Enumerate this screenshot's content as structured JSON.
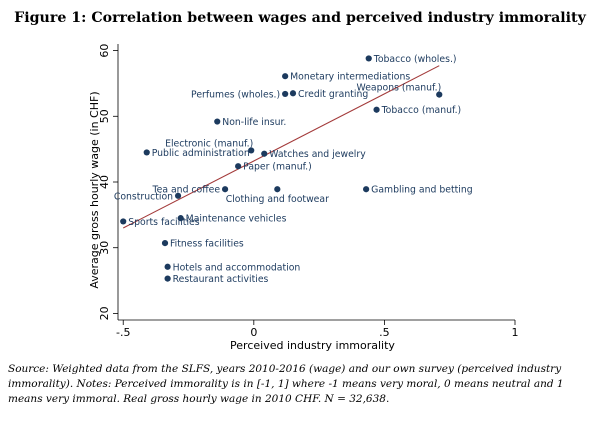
{
  "figure_title": "Figure 1: Correlation between wages and perceived industry immorality",
  "caption": "Source: Weighted data from the SLFS, years 2010-2016 (wage) and our own survey (perceived industry immorality). Notes: Perceived immorality is in [-1, 1] where -1 means very moral, 0 means neutral and 1 means very immoral. Real gross hourly wage in 2010 CHF. N = 32,638.",
  "colors": {
    "point": "#1c3a5e",
    "fit_line": "#a33a3a",
    "axis": "#000000",
    "text": "#000000"
  },
  "chart_data": {
    "type": "scatter",
    "title": "",
    "xlabel": "Perceived industry immorality",
    "ylabel": "Average gross hourly wage (in CHF)",
    "xlim": [
      -0.52,
      1.0
    ],
    "ylim": [
      19,
      61
    ],
    "xticks": [
      -0.5,
      0,
      0.5,
      1
    ],
    "xtick_labels": [
      "-.5",
      "0",
      ".5",
      "1"
    ],
    "yticks": [
      20,
      30,
      40,
      50,
      60
    ],
    "ytick_labels": [
      "20",
      "30",
      "40",
      "50",
      "60"
    ],
    "grid": false,
    "legend": "none",
    "points": [
      {
        "label": "Tobacco (wholes.)",
        "x": 0.44,
        "y": 58.8,
        "pos": "right"
      },
      {
        "label": "Monetary intermediations",
        "x": 0.12,
        "y": 56.1,
        "pos": "right"
      },
      {
        "label": "Weapons (manuf.)",
        "x": 0.71,
        "y": 53.3,
        "pos": "above-left"
      },
      {
        "label": "Perfumes (wholes.)",
        "x": 0.12,
        "y": 53.4,
        "pos": "left"
      },
      {
        "label": "Credit granting",
        "x": 0.15,
        "y": 53.5,
        "pos": "right"
      },
      {
        "label": "Tobacco (manuf.)",
        "x": 0.47,
        "y": 51.0,
        "pos": "right"
      },
      {
        "label": "Non-life insur.",
        "x": -0.14,
        "y": 49.2,
        "pos": "right"
      },
      {
        "label": "Electronic (manuf.)",
        "x": -0.01,
        "y": 44.8,
        "pos": "above-left"
      },
      {
        "label": "Public administration",
        "x": -0.41,
        "y": 44.5,
        "pos": "right"
      },
      {
        "label": "Watches and jewelry",
        "x": 0.04,
        "y": 44.3,
        "pos": "right"
      },
      {
        "label": "Paper (manuf.)",
        "x": -0.06,
        "y": 42.4,
        "pos": "right"
      },
      {
        "label": "Tea and coffee",
        "x": -0.11,
        "y": 38.9,
        "pos": "left"
      },
      {
        "label": "Clothing and footwear",
        "x": 0.09,
        "y": 38.9,
        "pos": "below"
      },
      {
        "label": "Gambling and betting",
        "x": 0.43,
        "y": 38.9,
        "pos": "right"
      },
      {
        "label": "Construction",
        "x": -0.29,
        "y": 37.9,
        "pos": "left"
      },
      {
        "label": "Sports facilities",
        "x": -0.5,
        "y": 34.0,
        "pos": "right"
      },
      {
        "label": "Maintenance vehicles",
        "x": -0.28,
        "y": 34.5,
        "pos": "right"
      },
      {
        "label": "Fitness facilities",
        "x": -0.34,
        "y": 30.7,
        "pos": "right"
      },
      {
        "label": "Hotels and accommodation",
        "x": -0.33,
        "y": 27.1,
        "pos": "right"
      },
      {
        "label": "Restaurant activities",
        "x": -0.33,
        "y": 25.3,
        "pos": "right"
      }
    ],
    "fit_line": {
      "x": [
        -0.5,
        0.71
      ],
      "y": [
        33.0,
        57.7
      ]
    }
  }
}
